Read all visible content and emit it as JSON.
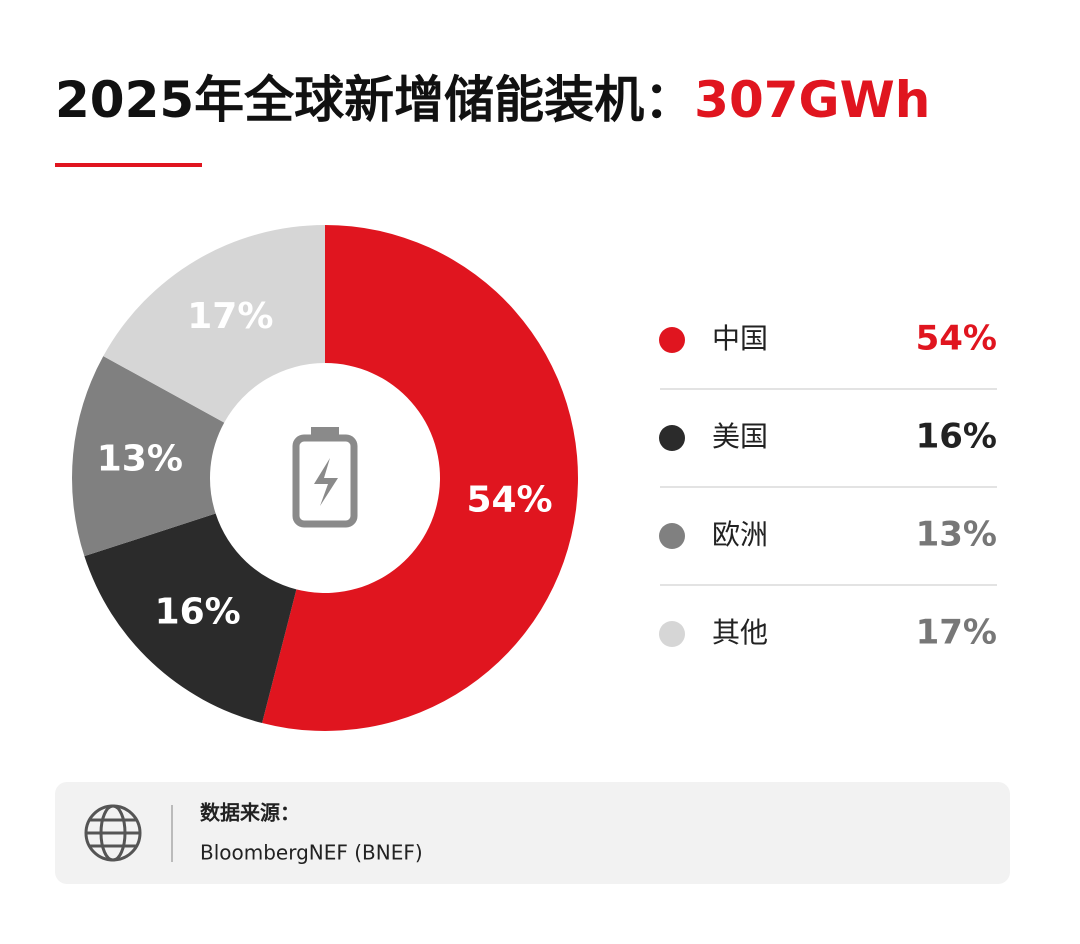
{
  "chart_data": {
    "type": "pie",
    "title": "2025年全球新增储能装机：",
    "title_highlight": "307GWh",
    "categories": [
      "中国",
      "美国",
      "欧洲",
      "其他"
    ],
    "values": [
      54,
      16,
      13,
      17
    ],
    "value_labels": [
      "54%",
      "16%",
      "13%",
      "17%"
    ],
    "colors": [
      "#e0151f",
      "#2b2b2b",
      "#808080",
      "#d6d6d6"
    ],
    "source_label": "数据来源：",
    "source": "BloombergNEF (BNEF)"
  }
}
